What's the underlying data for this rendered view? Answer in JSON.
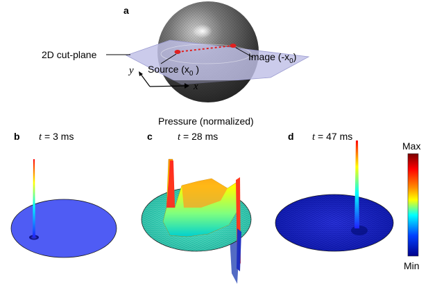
{
  "panels": {
    "a": "a",
    "b": "b",
    "c": "c",
    "d": "d"
  },
  "schematic": {
    "cut_plane_label": "2D cut-plane",
    "source_label": "Source (x",
    "source_sub": "0",
    "source_close": " )",
    "image_label": "Image (-x",
    "image_sub": "0",
    "image_close": ")",
    "axis_x": "x",
    "axis_y": "y"
  },
  "pressure_title": "Pressure (normalized)",
  "times": {
    "b": {
      "var": "t",
      "value": " = 3 ms"
    },
    "c": {
      "var": "t",
      "value": " = 28 ms"
    },
    "d": {
      "var": "t",
      "value": " = 47 ms"
    }
  },
  "colorbar": {
    "max_label": "Max",
    "min_label": "Min",
    "colors": [
      "#7a0000",
      "#ff0000",
      "#ff8c00",
      "#ffff00",
      "#00ffff",
      "#0040ff",
      "#00008b"
    ]
  }
}
